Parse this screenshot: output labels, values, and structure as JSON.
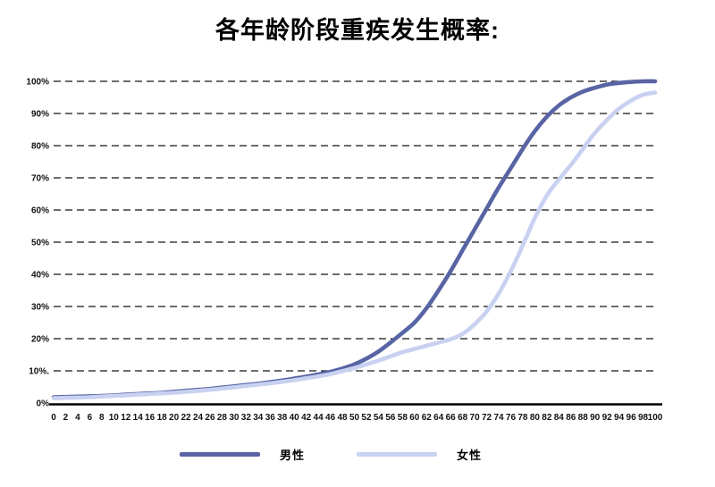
{
  "title": "各年龄阶段重疾发生概率:",
  "colors": {
    "male": "#5864a3",
    "female": "#c9d1f1",
    "grid": "#141414",
    "axis": "#000000",
    "tick_text": "#111111"
  },
  "legend": {
    "items": [
      {
        "label": "男性"
      },
      {
        "label": "女性"
      }
    ]
  },
  "chart_data": {
    "type": "line",
    "title": "各年龄阶段重疾发生概率:",
    "xlabel": "",
    "ylabel": "",
    "xlim": [
      0,
      100
    ],
    "ylim": [
      0,
      100
    ],
    "grid": "horizontal-dashed",
    "legend_position": "bottom-center",
    "y_tick_step": 10,
    "y_tick_labels": [
      "0%",
      "10%.",
      "20%",
      "30%",
      "40%",
      "50%",
      "60%",
      "70%",
      "80%",
      "90%",
      "100%"
    ],
    "x": [
      0,
      2,
      4,
      6,
      8,
      10,
      12,
      14,
      16,
      18,
      20,
      22,
      24,
      26,
      28,
      30,
      32,
      34,
      36,
      38,
      40,
      42,
      44,
      46,
      48,
      50,
      52,
      54,
      56,
      58,
      60,
      62,
      64,
      66,
      68,
      70,
      72,
      74,
      76,
      78,
      80,
      82,
      84,
      86,
      88,
      90,
      92,
      94,
      96,
      98,
      100
    ],
    "series": [
      {
        "name": "男性",
        "color": "#5864a3",
        "values": [
          1.8,
          1.9,
          2.0,
          2.1,
          2.2,
          2.4,
          2.6,
          2.8,
          3.0,
          3.2,
          3.5,
          3.8,
          4.1,
          4.4,
          4.8,
          5.2,
          5.6,
          6.0,
          6.5,
          7.0,
          7.6,
          8.2,
          8.9,
          9.7,
          10.7,
          12.0,
          13.8,
          16.0,
          18.8,
          21.8,
          25.0,
          29.5,
          35.0,
          41.0,
          47.5,
          54.0,
          60.5,
          67.0,
          73.0,
          79.0,
          84.5,
          89.0,
          92.5,
          95.0,
          96.8,
          98.0,
          99.0,
          99.5,
          99.8,
          100.0,
          100.0
        ]
      },
      {
        "name": "女性",
        "color": "#c9d1f1",
        "values": [
          1.5,
          1.6,
          1.7,
          1.8,
          2.0,
          2.2,
          2.4,
          2.6,
          2.8,
          3.0,
          3.2,
          3.5,
          3.8,
          4.1,
          4.5,
          4.9,
          5.3,
          5.7,
          6.1,
          6.6,
          7.1,
          7.7,
          8.3,
          9.0,
          9.9,
          10.9,
          12.0,
          13.2,
          14.5,
          15.8,
          16.8,
          17.8,
          18.8,
          19.8,
          21.5,
          24.5,
          28.5,
          34.0,
          41.0,
          49.0,
          57.5,
          64.5,
          69.5,
          74.0,
          79.0,
          84.0,
          88.0,
          91.5,
          94.0,
          95.8,
          96.5
        ]
      }
    ]
  }
}
